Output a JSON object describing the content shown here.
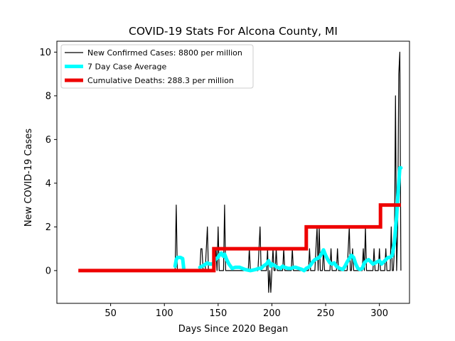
{
  "chart_data": {
    "type": "line",
    "title": "COVID-19 Stats For Alcona County, MI",
    "xlabel": "Days Since 2020 Began",
    "ylabel": "New COVID-19 Cases",
    "xlim": [
      0,
      328
    ],
    "ylim": [
      -1.5,
      10.5
    ],
    "xticks": [
      50,
      100,
      150,
      200,
      250,
      300
    ],
    "yticks": [
      0,
      2,
      4,
      6,
      8,
      10
    ],
    "legend_position": "upper-left",
    "colors": {
      "cases": "#000000",
      "average": "#00ffff",
      "deaths": "#ee0000"
    },
    "series": [
      {
        "name": "New Confirmed Cases: 8800 per million",
        "x": [
          110,
          111,
          112,
          133,
          134,
          135,
          136,
          138,
          139,
          140,
          141,
          142,
          145,
          146,
          147,
          148,
          149,
          150,
          151,
          152,
          155,
          156,
          157,
          160,
          170,
          178,
          179,
          180,
          181,
          182,
          187,
          188,
          189,
          190,
          191,
          195,
          196,
          197,
          198,
          199,
          200,
          201,
          202,
          203,
          204,
          205,
          206,
          210,
          211,
          212,
          218,
          219,
          220,
          225,
          230,
          234,
          235,
          236,
          237,
          240,
          241,
          242,
          243,
          244,
          245,
          246,
          247,
          248,
          249,
          250,
          254,
          255,
          256,
          260,
          261,
          262,
          270,
          271,
          272,
          273,
          274,
          275,
          276,
          280,
          284,
          285,
          286,
          287,
          288,
          289,
          290,
          294,
          295,
          296,
          299,
          300,
          301,
          305,
          306,
          307,
          308,
          310,
          311,
          312,
          313,
          314,
          315,
          316,
          317,
          318,
          319,
          320
        ],
        "y": [
          0,
          3,
          0,
          0,
          1,
          1,
          0,
          0,
          1,
          2,
          0,
          0,
          0,
          1,
          0,
          1,
          0,
          2,
          0,
          0,
          0,
          3,
          0,
          0,
          0,
          0,
          1,
          0,
          0,
          0,
          0,
          1,
          2,
          0,
          0,
          0,
          1,
          -1,
          0,
          -1,
          0,
          1,
          0,
          0,
          1,
          0,
          0,
          0,
          1,
          0,
          0,
          1,
          0,
          0,
          0,
          0,
          1,
          0,
          0,
          0,
          1,
          2,
          0,
          2,
          0,
          0,
          0,
          1,
          0,
          0,
          0,
          1,
          0,
          0,
          1,
          0,
          0,
          1,
          2,
          0,
          0,
          1,
          0,
          0,
          0,
          1,
          0,
          2,
          0,
          0,
          0,
          0,
          1,
          0,
          0,
          1,
          0,
          0,
          1,
          0,
          0,
          0,
          2,
          0,
          0,
          1,
          8,
          0,
          2,
          9,
          10,
          0
        ]
      },
      {
        "name": "7 Day Case Average",
        "segments": [
          {
            "x": [
              110,
              111,
              112,
              115,
              117,
              118
            ],
            "y": [
              0.2,
              0.5,
              0.6,
              0.6,
              0.55,
              0.1
            ]
          },
          {
            "x": [
              133,
              135,
              137,
              140,
              142,
              145,
              148,
              150,
              151,
              152,
              153,
              154,
              155,
              156,
              158,
              160,
              163,
              166,
              170,
              175,
              180,
              185,
              188,
              190,
              192,
              195,
              197,
              199,
              200,
              202,
              205,
              208,
              210,
              212,
              215,
              218,
              220,
              222,
              225,
              228,
              230,
              232,
              234,
              236,
              238,
              240,
              242,
              244,
              246,
              248,
              250,
              252,
              254,
              256,
              258,
              260,
              263,
              266,
              268,
              270,
              272,
              274,
              276,
              278,
              280,
              282,
              284,
              286,
              288,
              290,
              292,
              294,
              296,
              298,
              300,
              302,
              304,
              306,
              308,
              310,
              312,
              314,
              315,
              316,
              317,
              318,
              319,
              320
            ],
            "y": [
              0.15,
              0.2,
              0.25,
              0.35,
              0.3,
              0.3,
              0.55,
              0.6,
              0.7,
              0.75,
              0.8,
              0.7,
              0.65,
              0.75,
              0.5,
              0.3,
              0.1,
              0.15,
              0.15,
              0.05,
              0.0,
              0.05,
              0.1,
              0.1,
              0.2,
              0.3,
              0.45,
              0.2,
              0.3,
              0.25,
              0.15,
              0.1,
              0.2,
              0.15,
              0.1,
              0.1,
              0.15,
              0.15,
              0.1,
              0.05,
              0.0,
              0.1,
              0.15,
              0.25,
              0.4,
              0.5,
              0.55,
              0.6,
              0.75,
              0.95,
              0.7,
              0.5,
              0.35,
              0.3,
              0.35,
              0.2,
              0.1,
              0.05,
              0.2,
              0.4,
              0.55,
              0.7,
              0.6,
              0.3,
              0.1,
              0.05,
              0.1,
              0.35,
              0.45,
              0.5,
              0.4,
              0.3,
              0.35,
              0.4,
              0.45,
              0.3,
              0.4,
              0.5,
              0.6,
              0.6,
              0.7,
              1.3,
              1.9,
              2.5,
              3.3,
              4.0,
              4.7,
              4.7
            ]
          }
        ]
      },
      {
        "name": "Cumulative Deaths: 288.3 per million",
        "x": [
          20,
          146,
          146,
          232,
          232,
          301,
          301,
          320
        ],
        "y": [
          0,
          0,
          1,
          1,
          2,
          2,
          3,
          3
        ]
      }
    ]
  }
}
